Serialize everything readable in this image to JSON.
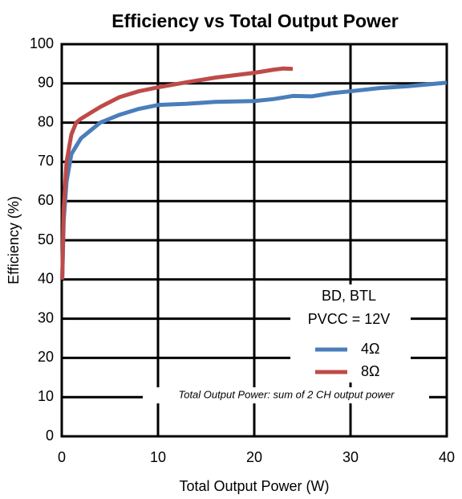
{
  "chart_data": {
    "type": "line",
    "title": "Efficiency vs Total Output Power",
    "x_label": "Total Output Power (W)",
    "y_label": "Efficiency (%)",
    "xlim": [
      0,
      40
    ],
    "ylim": [
      0,
      100
    ],
    "xticks": [
      0,
      10,
      20,
      30,
      40
    ],
    "yticks": [
      0,
      10,
      20,
      30,
      40,
      50,
      60,
      70,
      80,
      90,
      100
    ],
    "grid": true,
    "legend": "lower right",
    "annotations": [
      "BD, BTL",
      "PVCC = 12V"
    ],
    "note": "Total Output Power: sum of 2 CH output power",
    "series": [
      {
        "name": "4Ω",
        "color": "#4a7ebb",
        "x": [
          0.05,
          0.2,
          0.5,
          1,
          2,
          3,
          4,
          6,
          8,
          10,
          13,
          16,
          20,
          22,
          24,
          26,
          28,
          30,
          33,
          36,
          40
        ],
        "values": [
          40,
          55,
          65,
          72,
          76,
          78,
          80,
          82,
          83.5,
          84.5,
          84.8,
          85.3,
          85.5,
          86,
          86.8,
          86.7,
          87.5,
          88,
          88.8,
          89.3,
          90.2
        ]
      },
      {
        "name": "8Ω",
        "color": "#be4b48",
        "x": [
          0.05,
          0.2,
          0.5,
          1,
          1.5,
          2,
          3,
          4,
          6,
          8,
          10,
          13,
          16,
          20,
          22,
          23,
          24
        ],
        "values": [
          40,
          58,
          70,
          77,
          80,
          81,
          82.5,
          84,
          86.5,
          88,
          89,
          90.3,
          91.5,
          92.7,
          93.5,
          93.8,
          93.7
        ]
      }
    ]
  }
}
